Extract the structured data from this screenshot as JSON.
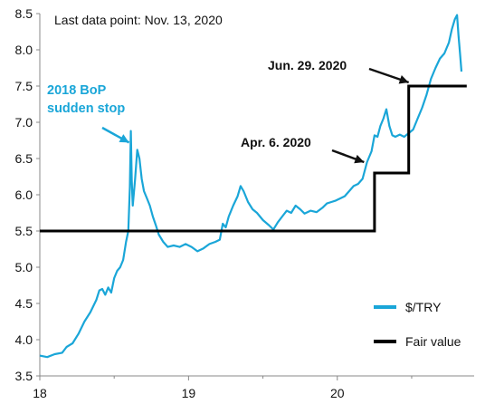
{
  "chart_data": {
    "type": "line",
    "title": "",
    "xlabel": "",
    "ylabel": "",
    "note": "Last data point: Nov. 13, 2020",
    "xlim": [
      18.0,
      20.92
    ],
    "ylim": [
      3.5,
      8.5
    ],
    "x_ticks": [
      18,
      19,
      20
    ],
    "y_ticks": [
      "3.5",
      "4.0",
      "4.5",
      "5.0",
      "5.5",
      "6.0",
      "6.5",
      "7.0",
      "7.5",
      "8.0",
      "8.5"
    ],
    "grid": false,
    "legend_position": "bottom-right",
    "series": [
      {
        "name": "$/TRY",
        "color": "#1aa6d8",
        "points": [
          [
            18.0,
            3.78
          ],
          [
            18.05,
            3.76
          ],
          [
            18.1,
            3.8
          ],
          [
            18.15,
            3.82
          ],
          [
            18.18,
            3.9
          ],
          [
            18.22,
            3.95
          ],
          [
            18.26,
            4.08
          ],
          [
            18.3,
            4.25
          ],
          [
            18.34,
            4.38
          ],
          [
            18.38,
            4.55
          ],
          [
            18.4,
            4.68
          ],
          [
            18.42,
            4.7
          ],
          [
            18.44,
            4.62
          ],
          [
            18.46,
            4.72
          ],
          [
            18.48,
            4.65
          ],
          [
            18.5,
            4.85
          ],
          [
            18.52,
            4.95
          ],
          [
            18.54,
            5.0
          ],
          [
            18.56,
            5.1
          ],
          [
            18.58,
            5.35
          ],
          [
            18.595,
            5.5
          ],
          [
            18.605,
            6.1
          ],
          [
            18.612,
            6.88
          ],
          [
            18.618,
            6.2
          ],
          [
            18.625,
            5.85
          ],
          [
            18.64,
            6.2
          ],
          [
            18.655,
            6.62
          ],
          [
            18.67,
            6.5
          ],
          [
            18.685,
            6.22
          ],
          [
            18.7,
            6.05
          ],
          [
            18.72,
            5.95
          ],
          [
            18.74,
            5.85
          ],
          [
            18.76,
            5.7
          ],
          [
            18.78,
            5.58
          ],
          [
            18.8,
            5.45
          ],
          [
            18.83,
            5.35
          ],
          [
            18.86,
            5.28
          ],
          [
            18.9,
            5.3
          ],
          [
            18.94,
            5.28
          ],
          [
            18.98,
            5.32
          ],
          [
            19.02,
            5.28
          ],
          [
            19.06,
            5.22
          ],
          [
            19.1,
            5.26
          ],
          [
            19.14,
            5.32
          ],
          [
            19.18,
            5.35
          ],
          [
            19.21,
            5.38
          ],
          [
            19.23,
            5.6
          ],
          [
            19.25,
            5.55
          ],
          [
            19.27,
            5.7
          ],
          [
            19.3,
            5.85
          ],
          [
            19.33,
            5.98
          ],
          [
            19.35,
            6.12
          ],
          [
            19.37,
            6.05
          ],
          [
            19.4,
            5.9
          ],
          [
            19.43,
            5.8
          ],
          [
            19.46,
            5.75
          ],
          [
            19.5,
            5.65
          ],
          [
            19.54,
            5.58
          ],
          [
            19.57,
            5.52
          ],
          [
            19.6,
            5.62
          ],
          [
            19.63,
            5.7
          ],
          [
            19.66,
            5.78
          ],
          [
            19.69,
            5.75
          ],
          [
            19.72,
            5.85
          ],
          [
            19.75,
            5.8
          ],
          [
            19.78,
            5.74
          ],
          [
            19.82,
            5.78
          ],
          [
            19.86,
            5.76
          ],
          [
            19.9,
            5.82
          ],
          [
            19.93,
            5.88
          ],
          [
            19.96,
            5.9
          ],
          [
            19.99,
            5.92
          ],
          [
            20.02,
            5.95
          ],
          [
            20.05,
            5.98
          ],
          [
            20.08,
            6.05
          ],
          [
            20.11,
            6.12
          ],
          [
            20.14,
            6.15
          ],
          [
            20.17,
            6.22
          ],
          [
            20.2,
            6.45
          ],
          [
            20.23,
            6.6
          ],
          [
            20.25,
            6.82
          ],
          [
            20.27,
            6.8
          ],
          [
            20.29,
            6.95
          ],
          [
            20.31,
            7.05
          ],
          [
            20.33,
            7.18
          ],
          [
            20.35,
            6.95
          ],
          [
            20.37,
            6.82
          ],
          [
            20.39,
            6.8
          ],
          [
            20.42,
            6.83
          ],
          [
            20.45,
            6.8
          ],
          [
            20.48,
            6.85
          ],
          [
            20.51,
            6.9
          ],
          [
            20.54,
            7.05
          ],
          [
            20.57,
            7.2
          ],
          [
            20.6,
            7.38
          ],
          [
            20.63,
            7.6
          ],
          [
            20.66,
            7.75
          ],
          [
            20.69,
            7.88
          ],
          [
            20.72,
            7.95
          ],
          [
            20.75,
            8.1
          ],
          [
            20.77,
            8.28
          ],
          [
            20.79,
            8.42
          ],
          [
            20.805,
            8.48
          ],
          [
            20.815,
            8.2
          ],
          [
            20.825,
            7.95
          ],
          [
            20.835,
            7.7
          ]
        ]
      },
      {
        "name": "Fair value",
        "color": "#000000",
        "points": [
          [
            18.0,
            5.5
          ],
          [
            20.25,
            5.5
          ],
          [
            20.25,
            6.3
          ],
          [
            20.48,
            6.3
          ],
          [
            20.48,
            7.5
          ],
          [
            20.87,
            7.5
          ]
        ]
      }
    ],
    "annotations": [
      {
        "lines": [
          "2018 BoP",
          "sudden stop"
        ],
        "style": "cyan",
        "arrow_to": [
          18.6,
          6.72
        ]
      },
      {
        "lines": [
          "Apr. 6. 2020"
        ],
        "style": "black",
        "arrow_to": [
          20.18,
          6.45
        ]
      },
      {
        "lines": [
          "Jun. 29. 2020"
        ],
        "style": "black",
        "arrow_to": [
          20.48,
          7.55
        ]
      }
    ]
  }
}
